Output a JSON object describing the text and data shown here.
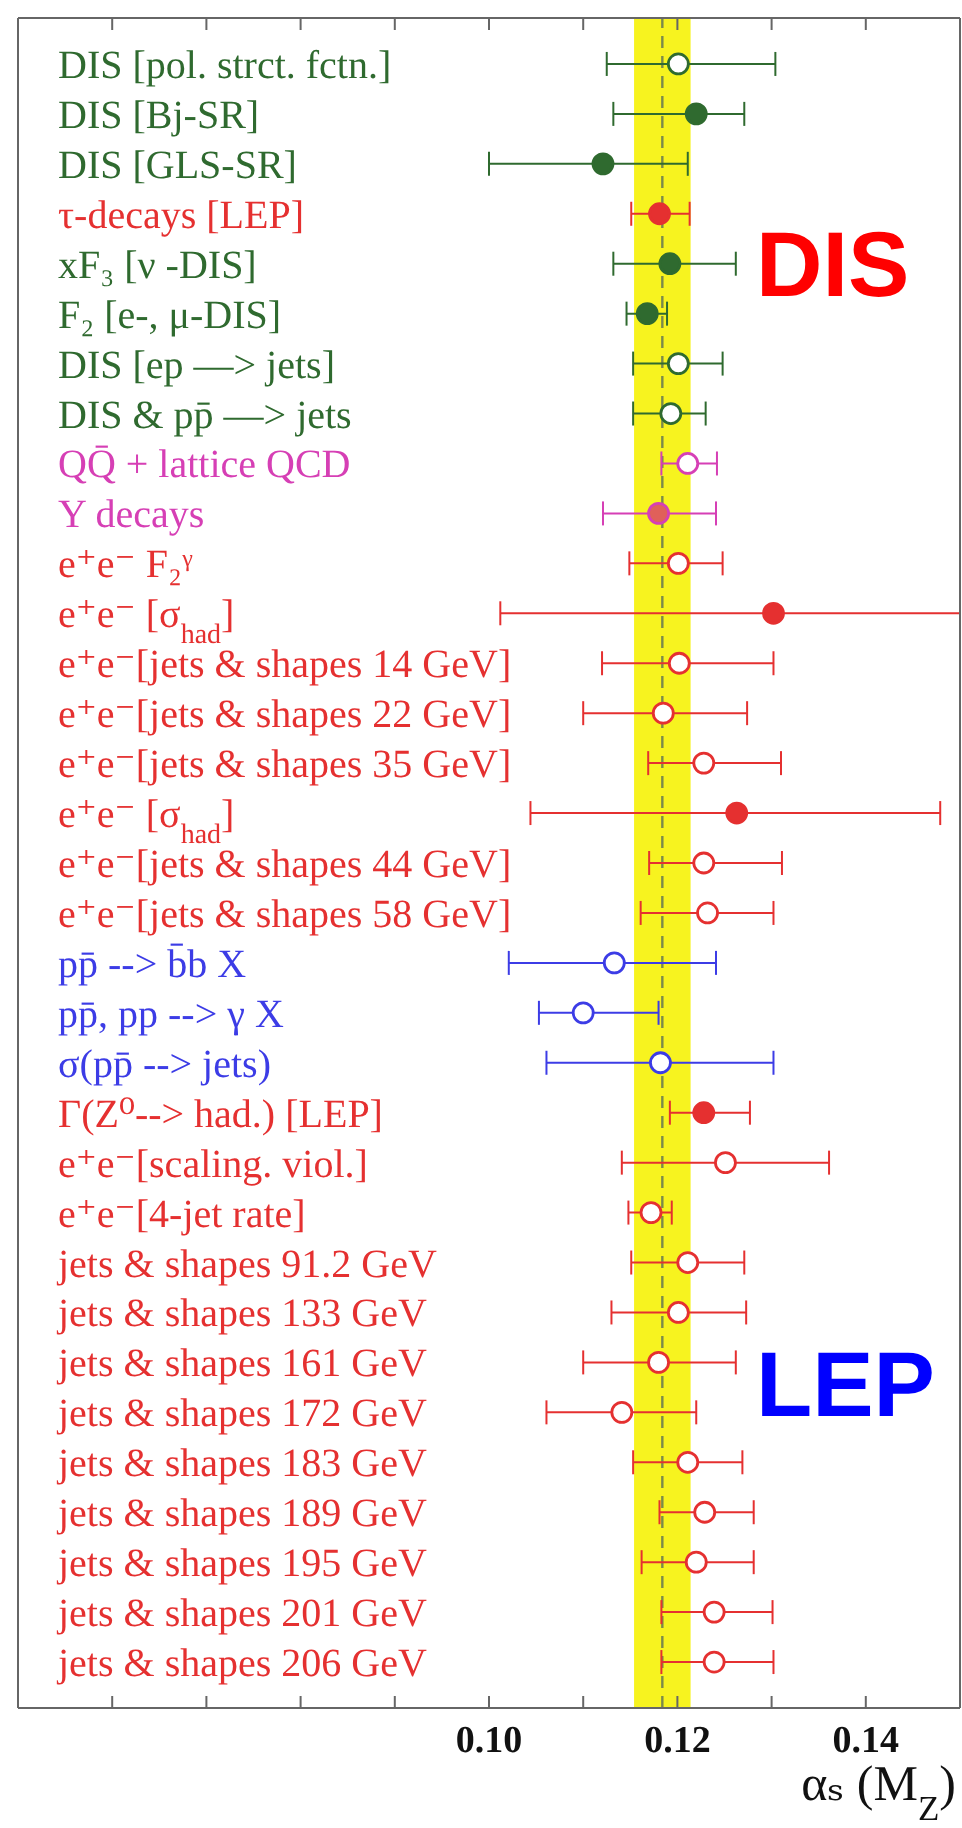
{
  "chart_data": {
    "type": "scatter",
    "orientation": "horizontal",
    "xlabel": "αₛ (M$_{Z}$)",
    "annotations": [
      "DIS",
      "LEP"
    ],
    "categories": [
      "DIS [pol. strct. fctn.]",
      "DIS [Bj-SR]",
      "DIS [GLS-SR]",
      "τ-decays [LEP]",
      "xF₃ [ν -DIS]",
      "F₂ [e-, μ-DIS]",
      "DIS [ep —> jets]",
      "DIS & pp̄ —> jets",
      "QQ̄ + lattice QCD",
      "Υ decays",
      "e⁺e⁻ F₂ᵞ",
      "e⁺e⁻ [σ$_{had}$]",
      "e⁺e⁻[jets & shapes 14 GeV]",
      "e⁺e⁻[jets & shapes 22 GeV]",
      "e⁺e⁻[jets & shapes 35 GeV]",
      "e⁺e⁻ [σ$_{had}$]",
      "e⁺e⁻[jets & shapes 44 GeV]",
      "e⁺e⁻[jets & shapes 58 GeV]",
      "pp̄ --> b̄b X",
      "pp̄, pp --> γ X",
      "σ(pp̄ --> jets)",
      "Γ(Z⁰--> had.) [LEP]",
      "e⁺e⁻[scaling. viol.]",
      "e⁺e⁻[4-jet rate]",
      "jets & shapes 91.2 GeV",
      "jets & shapes 133 GeV",
      "jets & shapes 161 GeV",
      "jets & shapes 172 GeV",
      "jets & shapes 183 GeV",
      "jets & shapes 189 GeV",
      "jets & shapes 195 GeV",
      "jets & shapes 201 GeV",
      "jets & shapes 206 GeV"
    ],
    "series": [
      {
        "color": "#2f6a2f",
        "values": [
          0.1201,
          0.122,
          0.1121,
          null,
          0.1192,
          0.1168,
          0.1201,
          0.1193,
          null,
          null,
          null,
          null,
          null,
          null,
          null,
          null,
          null,
          null,
          null,
          null,
          null,
          null,
          null,
          null,
          null,
          null,
          null,
          null,
          null,
          null,
          null,
          null,
          null
        ],
        "colors": [
          "#ffffff",
          "#2f6a2f",
          "#2f6a2f",
          null,
          "#2f6a2f",
          "#2f6a2f",
          "#ffffff",
          "#ffffff",
          null,
          null,
          null,
          null,
          null,
          null,
          null,
          null,
          null,
          null,
          null,
          null,
          null,
          null,
          null,
          null,
          null,
          null,
          null,
          null,
          null,
          null,
          null,
          null,
          null
        ],
        "errors": [
          [
            0.1125,
            0.1304
          ],
          [
            0.1132,
            0.1271
          ],
          [
            0.1,
            0.1211
          ],
          null,
          [
            0.1132,
            0.1262
          ],
          [
            0.1146,
            0.1189
          ],
          [
            0.1153,
            0.1248
          ],
          [
            0.1153,
            0.123
          ],
          null,
          null,
          null,
          null,
          null,
          null,
          null,
          null,
          null,
          null,
          null,
          null,
          null,
          null,
          null,
          null,
          null,
          null,
          null,
          null,
          null,
          null,
          null,
          null,
          null
        ]
      },
      {
        "color": "#e53030",
        "values": [
          null,
          null,
          null,
          0.1181,
          null,
          null,
          null,
          null,
          null,
          null,
          0.1201,
          0.1302,
          0.1202,
          0.1185,
          0.1228,
          0.1263,
          0.1228,
          0.1232,
          null,
          null,
          null,
          0.1228,
          0.1251,
          0.1172,
          0.1211,
          0.1201,
          0.118,
          0.1141,
          0.1211,
          0.1229,
          0.122,
          0.1239,
          0.1239
        ],
        "colors": [
          null,
          null,
          null,
          "#e53030",
          null,
          null,
          null,
          null,
          null,
          null,
          "#ffffff",
          "#e53030",
          "#ffffff",
          "#ffffff",
          "#ffffff",
          "#e53030",
          "#ffffff",
          "#ffffff",
          null,
          null,
          null,
          "#e53030",
          "#ffffff",
          "#ffffff",
          "#ffffff",
          "#ffffff",
          "#ffffff",
          "#ffffff",
          "#ffffff",
          "#ffffff",
          "#ffffff",
          "#ffffff",
          "#ffffff"
        ],
        "errors": [
          null,
          null,
          null,
          [
            0.1151,
            0.1213
          ],
          null,
          null,
          null,
          null,
          null,
          null,
          [
            0.1149,
            0.1248
          ],
          [
            0.1012,
            0.15
          ],
          [
            0.112,
            0.1302
          ],
          [
            0.11,
            0.1274
          ],
          [
            0.1169,
            0.131
          ],
          [
            0.1044,
            0.1479
          ],
          [
            0.117,
            0.1311
          ],
          [
            0.1161,
            0.1302
          ],
          null,
          null,
          null,
          [
            0.1192,
            0.1277
          ],
          [
            0.1141,
            0.1361
          ],
          [
            0.1148,
            0.1194
          ],
          [
            0.1151,
            0.1271
          ],
          [
            0.113,
            0.1273
          ],
          [
            0.11,
            0.1262
          ],
          [
            0.1061,
            0.122
          ],
          [
            0.1153,
            0.1269
          ],
          [
            0.1181,
            0.1281
          ],
          [
            0.1162,
            0.1281
          ],
          [
            0.1183,
            0.1301
          ],
          [
            0.1183,
            0.1302
          ]
        ]
      },
      {
        "color": "#d63fb5",
        "values": [
          null,
          null,
          null,
          null,
          null,
          null,
          null,
          null,
          0.1211,
          0.118,
          null,
          null,
          null,
          null,
          null,
          null,
          null,
          null,
          null,
          null,
          null,
          null,
          null,
          null,
          null,
          null,
          null,
          null,
          null,
          null,
          null,
          null,
          null
        ],
        "colors": [
          null,
          null,
          null,
          null,
          null,
          null,
          null,
          null,
          "#ffffff",
          "#e0605a",
          null,
          null,
          null,
          null,
          null,
          null,
          null,
          null,
          null,
          null,
          null,
          null,
          null,
          null,
          null,
          null,
          null,
          null,
          null,
          null,
          null,
          null,
          null
        ],
        "errors": [
          null,
          null,
          null,
          null,
          null,
          null,
          null,
          null,
          [
            0.1183,
            0.1242
          ],
          [
            0.1121,
            0.1241
          ],
          null,
          null,
          null,
          null,
          null,
          null,
          null,
          null,
          null,
          null,
          null,
          null,
          null,
          null,
          null,
          null,
          null,
          null,
          null,
          null,
          null,
          null,
          null
        ]
      },
      {
        "color": "#3c3ce6",
        "values": [
          null,
          null,
          null,
          null,
          null,
          null,
          null,
          null,
          null,
          null,
          null,
          null,
          null,
          null,
          null,
          null,
          null,
          null,
          0.1133,
          0.11,
          0.1182,
          null,
          null,
          null,
          null,
          null,
          null,
          null,
          null,
          null,
          null,
          null,
          null
        ],
        "colors": [
          null,
          null,
          null,
          null,
          null,
          null,
          null,
          null,
          null,
          null,
          null,
          null,
          null,
          null,
          null,
          null,
          null,
          null,
          "#ffffff",
          "#ffffff",
          "#ffffff",
          null,
          null,
          null,
          null,
          null,
          null,
          null,
          null,
          null,
          null,
          null,
          null
        ],
        "errors": [
          null,
          null,
          null,
          null,
          null,
          null,
          null,
          null,
          null,
          null,
          null,
          null,
          null,
          null,
          null,
          null,
          null,
          null,
          [
            0.1021,
            0.1241
          ],
          [
            0.1053,
            0.118
          ],
          [
            0.1061,
            0.1302
          ],
          null,
          null,
          null,
          null,
          null,
          null,
          null,
          null,
          null,
          null,
          null,
          null
        ]
      }
    ],
    "xlim": [
      0.05,
      0.15
    ],
    "xticks": [
      {
        "value": 0.06,
        "label": null
      },
      {
        "value": 0.07,
        "label": null
      },
      {
        "value": 0.08,
        "label": null
      },
      {
        "value": 0.09,
        "label": null
      },
      {
        "value": 0.1,
        "label": "0.10"
      },
      {
        "value": 0.11,
        "label": null
      },
      0.12,
      {
        "value": 0.13,
        "label": null
      },
      0.14
    ],
    "ref_lines": [
      {
        "axis": "x",
        "value": 0.1184,
        "color": "#7b8a4a",
        "line_style": "dashed"
      }
    ],
    "bands": [
      {
        "axis": "x",
        "from": 0.1154,
        "to": 0.1214,
        "color": "#f7f31f"
      }
    ],
    "marker": "circle"
  }
}
